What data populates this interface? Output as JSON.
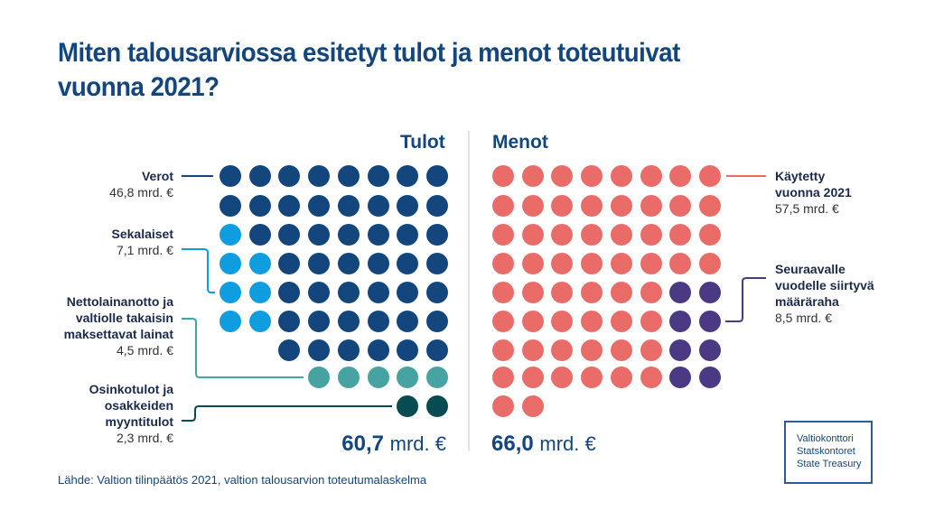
{
  "title": "Miten talousarviossa esitetyt tulot ja menot toteutuivat vuonna 2021?",
  "source": "Lähde: Valtion tilinpäätös 2021, valtion talousarvion toteutumalaskelma",
  "logo": {
    "line1": "Valtiokonttori",
    "line2": "Statskontoret",
    "line3": "State Treasury"
  },
  "colors": {
    "verot": "#13467c",
    "sekalaiset": "#0f9de0",
    "nettolainanotto": "#47a3a2",
    "osinkotulot": "#074c52",
    "kaytetty": "#ea6c69",
    "siirtyva": "#4b3983",
    "divider": "#e3e3e3"
  },
  "tulot": {
    "heading": "Tulot",
    "total_value": "60,7",
    "total_unit": "mrd. €",
    "categories": [
      {
        "name": "Verot",
        "value": "46,8 mrd. €"
      },
      {
        "name": "Sekalaiset",
        "value": "7,1 mrd. €"
      },
      {
        "name": "Nettolainanotto ja valtiolle takaisin maksettavat lainat",
        "line1": "Nettolainanotto ja",
        "line2": "valtiolle takaisin",
        "line3": "maksettavat lainat",
        "value": "4,5 mrd. €"
      },
      {
        "name": "Osinkotulot ja osakkeiden myyntitulot",
        "line1": "Osinkotulot ja",
        "line2": "osakkeiden",
        "line3": "myyntitulot",
        "value": "2,3 mrd. €"
      }
    ]
  },
  "menot": {
    "heading": "Menot",
    "total_value": "66,0",
    "total_unit": "mrd. €",
    "categories": [
      {
        "name": "Käytetty vuonna 2021",
        "line1": "Käytetty",
        "line2": "vuonna 2021",
        "value": "57,5 mrd. €"
      },
      {
        "name": "Seuraavalle vuodelle siirtyvä määräraha",
        "line1": "Seuraavalle",
        "line2": "vuodelle siirtyvä",
        "line3": "määräraha",
        "value": "8,5 mrd. €"
      }
    ]
  },
  "chart_data": {
    "type": "dot-matrix",
    "title": "Miten talousarviossa esitetyt tulot ja menot toteutuivat vuonna 2021?",
    "unit": "mrd. €",
    "groups": [
      {
        "name": "Tulot",
        "total": 60.7,
        "series": [
          {
            "name": "Verot",
            "value": 46.8,
            "dots": 47
          },
          {
            "name": "Sekalaiset",
            "value": 7.1,
            "dots": 7
          },
          {
            "name": "Nettolainanotto ja valtiolle takaisin maksettavat lainat",
            "value": 4.5,
            "dots": 5
          },
          {
            "name": "Osinkotulot ja osakkeiden myyntitulot",
            "value": 2.3,
            "dots": 2
          }
        ]
      },
      {
        "name": "Menot",
        "total": 66.0,
        "series": [
          {
            "name": "Käytetty vuonna 2021",
            "value": 57.5,
            "dots": 58
          },
          {
            "name": "Seuraavalle vuodelle siirtyvä määräraha",
            "value": 8.5,
            "dots": 8
          }
        ]
      }
    ],
    "dot_grid": {
      "columns": 8,
      "tulot_rows": [
        "VVVVVVVV",
        "VVVVVVVV",
        "SVVVVVVV",
        "SSVVVVVV",
        "SSVVVVVV",
        "SSVVVVVV",
        "..VVVVVV",
        "...NNNNN",
        "......OO"
      ],
      "menot_rows": [
        "KKKKKKKK",
        "KKKKKKKK",
        "KKKKKKKK",
        "KKKKKKKK",
        "KKKKKKPP",
        "KKKKKKPP",
        "KKKKKKPP",
        "KKKKKKPP",
        "KK......"
      ],
      "legend": {
        "V": "Verot",
        "S": "Sekalaiset",
        "N": "Nettolainanotto",
        "O": "Osinkotulot",
        "K": "Käytetty",
        "P": "Siirtyvä"
      }
    }
  }
}
